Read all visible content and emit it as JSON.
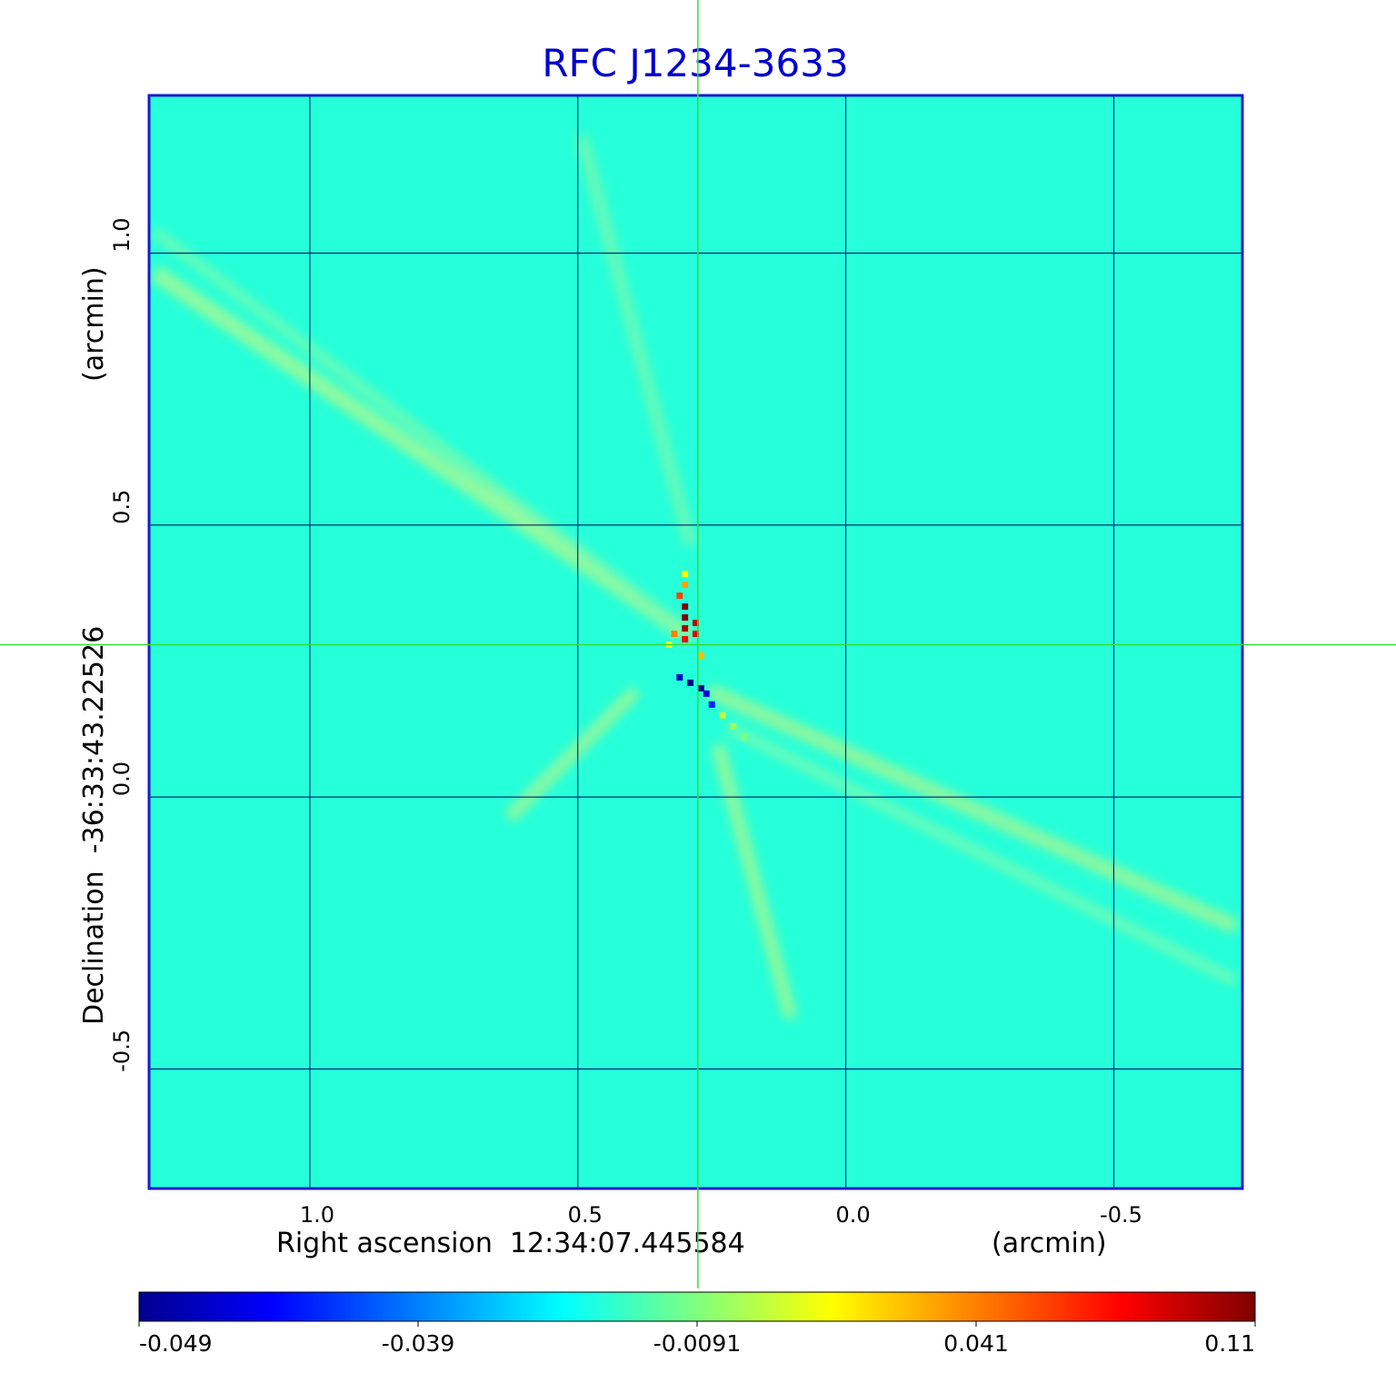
{
  "chart_data": {
    "type": "heatmap",
    "title": "RFC J1234-3633",
    "xlabel": "Right ascension  12:34:07.445584",
    "xunit": "(arcmin)",
    "ylabel": "Declination  -36:33:43.22526",
    "yunit": "(arcmin)",
    "xlim": [
      1.3,
      -0.74
    ],
    "ylim": [
      -0.72,
      1.29
    ],
    "x_ticks": [
      1.0,
      0.5,
      0.0,
      -0.5
    ],
    "x_tick_labels": [
      "1.0",
      "0.5",
      "0.0",
      "-0.5"
    ],
    "y_ticks": [
      1.0,
      0.5,
      0.0,
      -0.5
    ],
    "y_tick_labels": [
      "1.0",
      "0.5",
      "0.0",
      "-0.5"
    ],
    "grid": true,
    "crosshair": {
      "x": 0.276,
      "y": 0.28,
      "color": "#33dd33"
    },
    "colorbar": {
      "min": -0.049,
      "max": 0.11,
      "tick_labels": [
        "-0.049",
        "-0.039",
        "-0.0091",
        "0.041",
        "0.11"
      ],
      "colormap": [
        "#00008f",
        "#0000ff",
        "#00ffff",
        "#7fff7f",
        "#ffff00",
        "#ff0000",
        "#800000"
      ]
    },
    "background_value": 0.017,
    "features": [
      {
        "x": 0.3,
        "y": 0.33,
        "value": 0.11
      },
      {
        "x": 0.3,
        "y": 0.35,
        "value": 0.11
      },
      {
        "x": 0.3,
        "y": 0.31,
        "value": 0.105
      },
      {
        "x": 0.28,
        "y": 0.32,
        "value": 0.1
      },
      {
        "x": 0.28,
        "y": 0.3,
        "value": 0.095
      },
      {
        "x": 0.3,
        "y": 0.29,
        "value": 0.09
      },
      {
        "x": 0.31,
        "y": 0.37,
        "value": 0.08
      },
      {
        "x": 0.3,
        "y": 0.39,
        "value": 0.065
      },
      {
        "x": 0.32,
        "y": 0.3,
        "value": 0.07
      },
      {
        "x": 0.27,
        "y": 0.26,
        "value": 0.06
      },
      {
        "x": 0.3,
        "y": 0.41,
        "value": 0.05
      },
      {
        "x": 0.33,
        "y": 0.28,
        "value": 0.05
      },
      {
        "x": 0.29,
        "y": 0.21,
        "value": -0.049
      },
      {
        "x": 0.27,
        "y": 0.2,
        "value": -0.049
      },
      {
        "x": 0.31,
        "y": 0.22,
        "value": -0.039
      },
      {
        "x": 0.26,
        "y": 0.19,
        "value": -0.035
      },
      {
        "x": 0.25,
        "y": 0.17,
        "value": -0.025
      },
      {
        "x": 0.23,
        "y": 0.15,
        "value": 0.04
      },
      {
        "x": 0.21,
        "y": 0.13,
        "value": 0.035
      },
      {
        "x": 0.19,
        "y": 0.11,
        "value": 0.03
      }
    ]
  }
}
